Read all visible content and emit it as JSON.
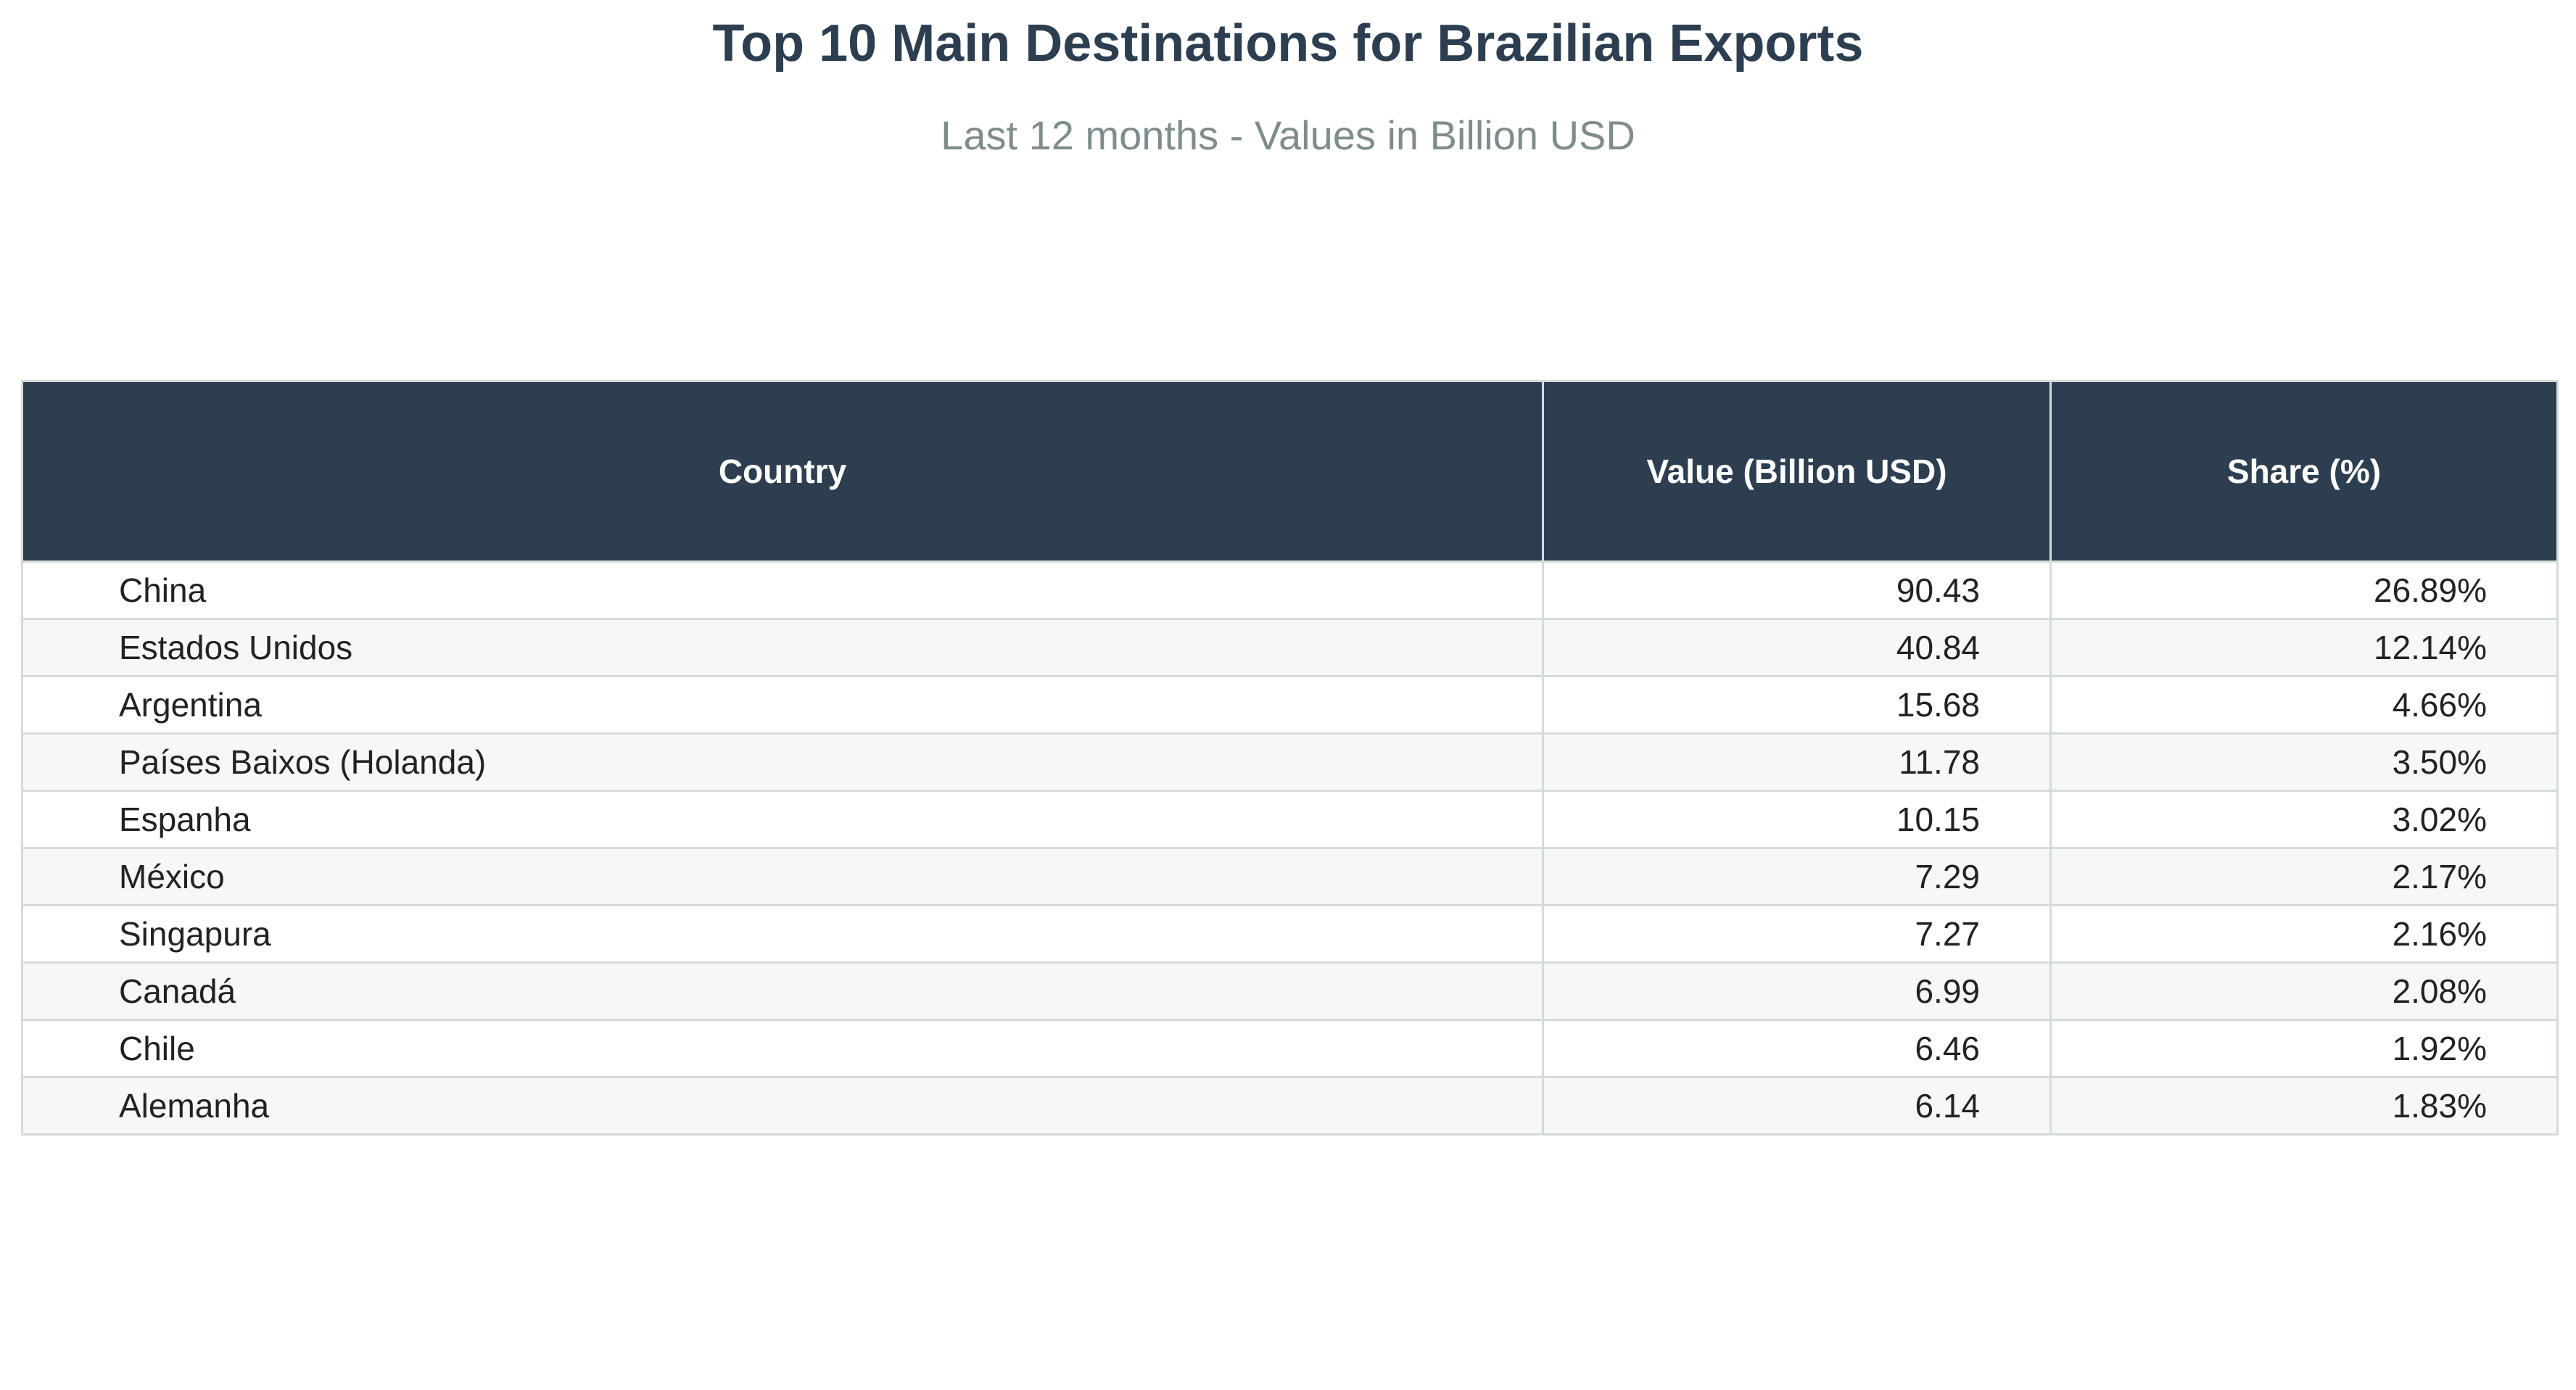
{
  "chart_data": {
    "type": "table",
    "title": "Top 10 Main Destinations for Brazilian Exports",
    "subtitle": "Last 12 months - Values in Billion USD",
    "columns": [
      "Country",
      "Value (Billion USD)",
      "Share (%)"
    ],
    "rows": [
      {
        "country": "China",
        "value": "90.43",
        "share": "26.89%"
      },
      {
        "country": "Estados Unidos",
        "value": "40.84",
        "share": "12.14%"
      },
      {
        "country": "Argentina",
        "value": "15.68",
        "share": "4.66%"
      },
      {
        "country": "Países Baixos (Holanda)",
        "value": "11.78",
        "share": "3.50%"
      },
      {
        "country": "Espanha",
        "value": "10.15",
        "share": "3.02%"
      },
      {
        "country": "México",
        "value": "7.29",
        "share": "2.17%"
      },
      {
        "country": "Singapura",
        "value": "7.27",
        "share": "2.16%"
      },
      {
        "country": "Canadá",
        "value": "6.99",
        "share": "2.08%"
      },
      {
        "country": "Chile",
        "value": "6.46",
        "share": "1.92%"
      },
      {
        "country": "Alemanha",
        "value": "6.14",
        "share": "1.83%"
      }
    ],
    "colors": {
      "header_bg": "#2c3e50",
      "header_text": "#ffffff",
      "title": "#2c3e50",
      "subtitle": "#7f8c8d",
      "row_alt": "#f5f7f8",
      "border": "#d5dbdb"
    }
  }
}
